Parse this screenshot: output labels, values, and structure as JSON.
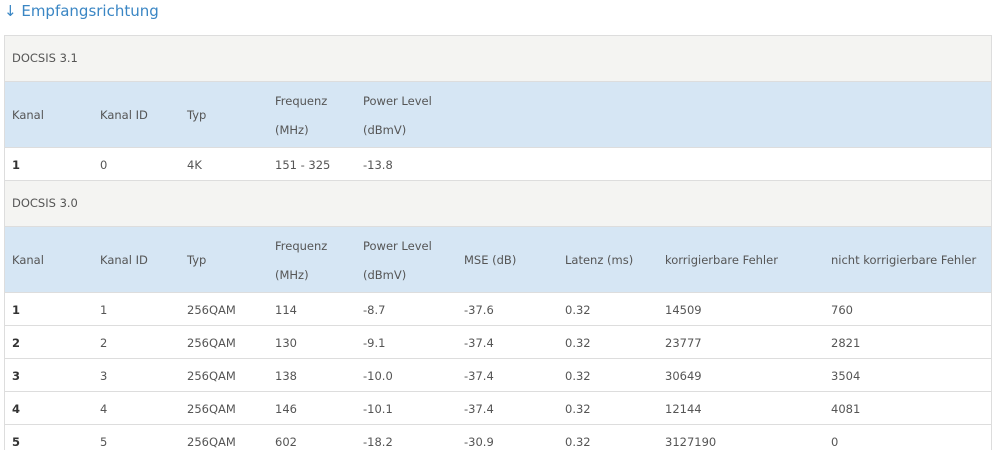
{
  "title": "↓ Empfangsrichtung",
  "sections": [
    {
      "label": "DOCSIS 3.1",
      "columns": [
        {
          "label": "Kanal"
        },
        {
          "label": "Kanal ID"
        },
        {
          "label": "Typ"
        },
        {
          "label": "Frequenz",
          "unit": "(MHz)"
        },
        {
          "label": "Power Level",
          "unit": "(dBmV)"
        }
      ],
      "rows": [
        [
          "1",
          "0",
          "4K",
          "151 - 325",
          "-13.8"
        ]
      ]
    },
    {
      "label": "DOCSIS 3.0",
      "columns": [
        {
          "label": "Kanal"
        },
        {
          "label": "Kanal ID"
        },
        {
          "label": "Typ"
        },
        {
          "label": "Frequenz",
          "unit": "(MHz)"
        },
        {
          "label": "Power Level",
          "unit": "(dBmV)"
        },
        {
          "label": "MSE (dB)"
        },
        {
          "label": "Latenz (ms)"
        },
        {
          "label": "korrigierbare Fehler"
        },
        {
          "label": "nicht korrigierbare Fehler"
        }
      ],
      "rows": [
        [
          "1",
          "1",
          "256QAM",
          "114",
          "-8.7",
          "-37.6",
          "0.32",
          "14509",
          "760"
        ],
        [
          "2",
          "2",
          "256QAM",
          "130",
          "-9.1",
          "-37.4",
          "0.32",
          "23777",
          "2821"
        ],
        [
          "3",
          "3",
          "256QAM",
          "138",
          "-10.0",
          "-37.4",
          "0.32",
          "30649",
          "3504"
        ],
        [
          "4",
          "4",
          "256QAM",
          "146",
          "-10.1",
          "-37.4",
          "0.32",
          "12144",
          "4081"
        ],
        [
          "5",
          "5",
          "256QAM",
          "602",
          "-18.2",
          "-30.9",
          "0.32",
          "3127190",
          "0"
        ]
      ]
    }
  ]
}
